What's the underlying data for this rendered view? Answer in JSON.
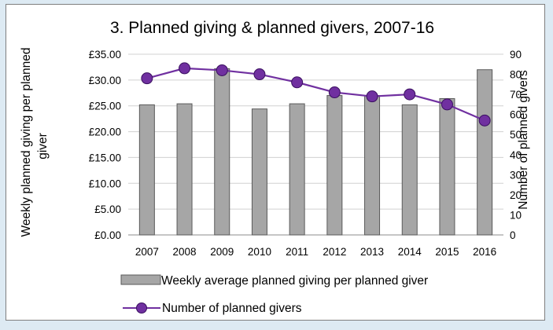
{
  "chart_data": {
    "type": "bar+line",
    "title": "3. Planned giving & planned givers, 2007-16",
    "categories": [
      "2007",
      "2008",
      "2009",
      "2010",
      "2011",
      "2012",
      "2013",
      "2014",
      "2015",
      "2016"
    ],
    "y_left": {
      "label_line1": "Weekly planned giving per planned",
      "label_line2": "giver",
      "range": [
        0,
        35
      ],
      "ticks": [
        "£0.00",
        "£5.00",
        "£10.00",
        "£15.00",
        "£20.00",
        "£25.00",
        "£30.00",
        "£35.00"
      ]
    },
    "y_right": {
      "label": "Number of planned givers",
      "range": [
        0,
        90
      ],
      "ticks": [
        "0",
        "10",
        "20",
        "30",
        "40",
        "50",
        "60",
        "70",
        "80",
        "90"
      ]
    },
    "series": [
      {
        "name": "Weekly average planned giving per planned giver",
        "type": "bar",
        "axis": "left",
        "color": "#a6a6a6",
        "values": [
          25.2,
          25.4,
          32.2,
          24.4,
          25.4,
          27.0,
          27.0,
          25.2,
          26.4,
          32.0
        ]
      },
      {
        "name": "Number of planned givers",
        "type": "line",
        "axis": "right",
        "color": "#7030a0",
        "values": [
          78,
          83,
          82,
          80,
          76,
          71,
          69,
          70,
          65,
          57
        ]
      }
    ],
    "grid": true,
    "legend_position": "bottom"
  }
}
